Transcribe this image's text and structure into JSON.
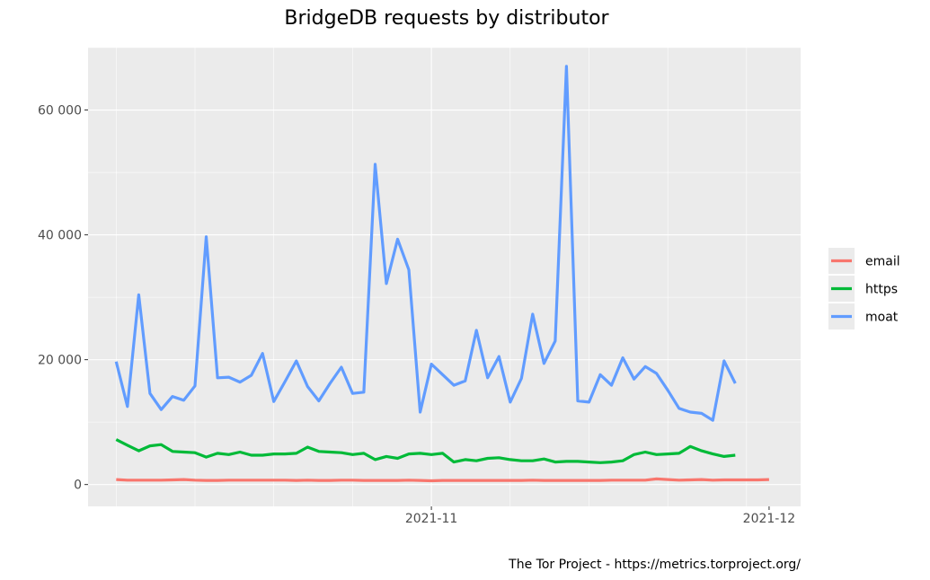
{
  "chart_data": {
    "type": "line",
    "title": "BridgeDB requests by distributor",
    "caption": "The Tor Project - https://metrics.torproject.org/",
    "xlabel": "",
    "ylabel": "",
    "x": [
      "2021-10-04",
      "2021-10-05",
      "2021-10-06",
      "2021-10-07",
      "2021-10-08",
      "2021-10-09",
      "2021-10-10",
      "2021-10-11",
      "2021-10-12",
      "2021-10-13",
      "2021-10-14",
      "2021-10-15",
      "2021-10-16",
      "2021-10-17",
      "2021-10-18",
      "2021-10-19",
      "2021-10-20",
      "2021-10-21",
      "2021-10-22",
      "2021-10-23",
      "2021-10-24",
      "2021-10-25",
      "2021-10-26",
      "2021-10-27",
      "2021-10-28",
      "2021-10-29",
      "2021-10-30",
      "2021-10-31",
      "2021-11-01",
      "2021-11-02",
      "2021-11-03",
      "2021-11-04",
      "2021-11-05",
      "2021-11-06",
      "2021-11-07",
      "2021-11-08",
      "2021-11-09",
      "2021-11-10",
      "2021-11-11",
      "2021-11-12",
      "2021-11-13",
      "2021-11-14",
      "2021-11-15",
      "2021-11-16",
      "2021-11-17",
      "2021-11-18",
      "2021-11-19",
      "2021-11-20",
      "2021-11-21",
      "2021-11-22",
      "2021-11-23",
      "2021-11-24",
      "2021-11-25",
      "2021-11-26",
      "2021-11-27",
      "2021-11-28",
      "2021-11-29",
      "2021-11-30",
      "2021-12-01"
    ],
    "x_ticks": [
      "2021-11-01",
      "2021-12-01"
    ],
    "x_tick_labels": [
      "2021-11",
      "2021-12"
    ],
    "y_ticks": [
      0,
      20000,
      40000,
      60000
    ],
    "y_tick_labels": [
      "0",
      "20 000",
      "40 000",
      "60 000"
    ],
    "ylim": [
      -3500,
      70000
    ],
    "grid": true,
    "legend_position": "right",
    "series": [
      {
        "name": "email",
        "color": "#f8766d",
        "values": [
          800,
          700,
          700,
          700,
          700,
          750,
          800,
          700,
          650,
          650,
          700,
          700,
          700,
          700,
          700,
          700,
          650,
          700,
          650,
          650,
          700,
          700,
          650,
          650,
          650,
          650,
          700,
          650,
          600,
          650,
          650,
          650,
          650,
          650,
          650,
          650,
          650,
          700,
          650,
          650,
          650,
          650,
          650,
          650,
          700,
          700,
          700,
          700,
          900,
          800,
          700,
          750,
          800,
          700,
          750,
          750,
          750,
          750,
          800
        ]
      },
      {
        "name": "https",
        "color": "#00ba38",
        "values": [
          7200,
          6300,
          5400,
          6200,
          6400,
          5300,
          5200,
          5100,
          4400,
          5000,
          4800,
          5200,
          4700,
          4700,
          4900,
          4900,
          5000,
          6000,
          5300,
          5200,
          5100,
          4800,
          5000,
          4000,
          4500,
          4200,
          4900,
          5000,
          4800,
          5000,
          3600,
          4000,
          3800,
          4200,
          4300,
          4000,
          3800,
          3800,
          4100,
          3600,
          3700,
          3700,
          3600,
          3500,
          3600,
          3800,
          4800,
          5200,
          4800,
          4900,
          5000,
          6100,
          5400,
          4900,
          4500,
          4700,
          null,
          null,
          null
        ]
      },
      {
        "name": "moat",
        "color": "#619cff",
        "values": [
          19700,
          12500,
          30400,
          14600,
          12000,
          14100,
          13500,
          15800,
          39700,
          17100,
          17200,
          16400,
          17500,
          21000,
          13300,
          16500,
          19800,
          15700,
          13400,
          16200,
          18800,
          14600,
          14800,
          51300,
          32200,
          39300,
          34400,
          11600,
          19300,
          17600,
          15900,
          16600,
          24700,
          17100,
          20500,
          13200,
          17000,
          27300,
          19400,
          23000,
          67000,
          13400,
          13200,
          17600,
          15900,
          20300,
          16900,
          18900,
          17800,
          15100,
          12200,
          11600,
          11400,
          10300,
          19800,
          16200,
          null,
          null,
          null
        ]
      }
    ]
  }
}
